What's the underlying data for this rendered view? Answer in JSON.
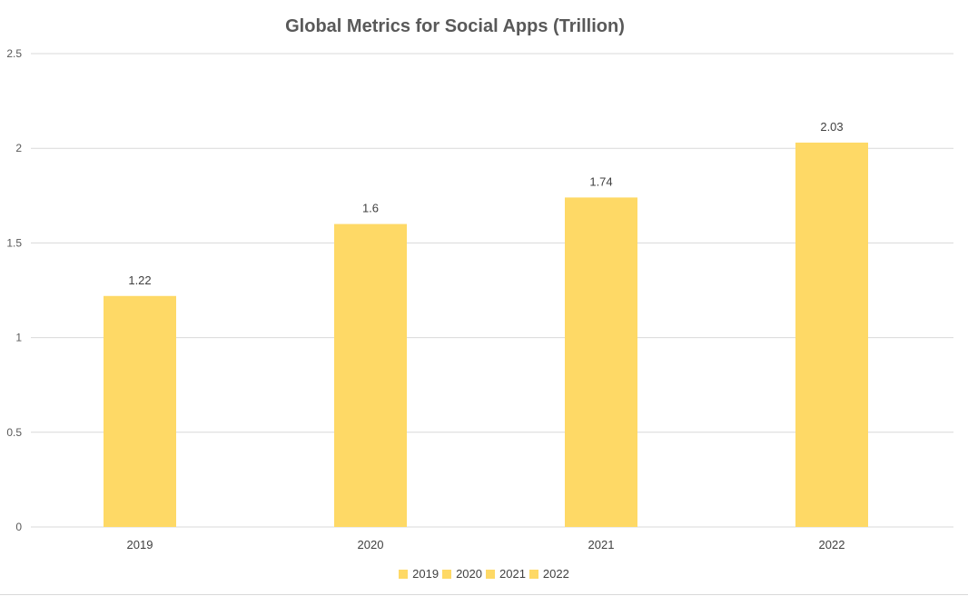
{
  "chart_data": {
    "type": "bar",
    "title": "Global Metrics for Social Apps (Trillion)",
    "categories": [
      "2019",
      "2020",
      "2021",
      "2022"
    ],
    "values": [
      1.22,
      1.6,
      1.74,
      2.03
    ],
    "data_labels": [
      "1.22",
      "1.6",
      "1.74",
      "2.03"
    ],
    "ylim": [
      0,
      2.5
    ],
    "yticks": [
      0,
      0.5,
      1,
      1.5,
      2,
      2.5
    ],
    "ytick_labels": [
      "0",
      "0.5",
      "1",
      "1.5",
      "2",
      "2.5"
    ],
    "xlabel": "",
    "ylabel": "",
    "grid": true,
    "legend": [
      "2019",
      "2020",
      "2021",
      "2022"
    ],
    "legend_position": "bottom",
    "bar_color": "#fed966"
  }
}
